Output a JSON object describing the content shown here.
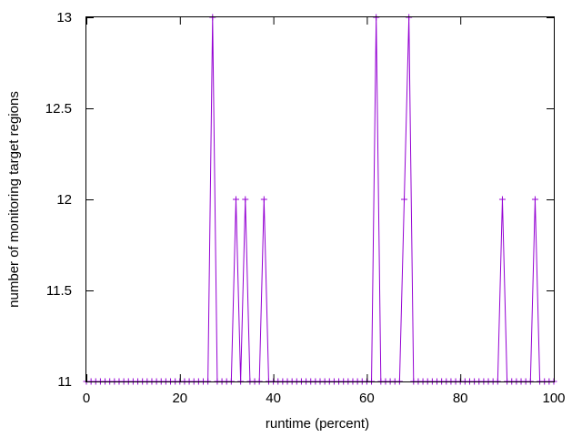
{
  "chart_data": {
    "type": "line",
    "xlabel": "runtime (percent)",
    "ylabel": "number of monitoring target regions",
    "xlim": [
      0,
      100
    ],
    "ylim": [
      11,
      13
    ],
    "xticks": [
      0,
      20,
      40,
      60,
      80,
      100
    ],
    "yticks": [
      11,
      11.5,
      12,
      12.5,
      13
    ],
    "xtick_labels": [
      "0",
      "20",
      "40",
      "60",
      "80",
      "100"
    ],
    "ytick_labels": [
      "11",
      "11.5",
      "12",
      "12.5",
      "13"
    ],
    "grid": false,
    "legend": "none",
    "color": "#9400d3",
    "marker": "+",
    "series": [
      {
        "x": [
          0,
          1,
          2,
          3,
          4,
          5,
          6,
          7,
          8,
          9,
          10,
          11,
          12,
          13,
          14,
          15,
          16,
          17,
          18,
          19,
          20,
          21,
          22,
          23,
          24,
          25,
          26,
          27,
          28,
          29,
          30,
          31,
          32,
          33,
          34,
          35,
          36,
          37,
          38,
          39,
          40,
          41,
          42,
          43,
          44,
          45,
          46,
          47,
          48,
          49,
          50,
          51,
          52,
          53,
          54,
          55,
          56,
          57,
          58,
          59,
          60,
          61,
          62,
          63,
          64,
          65,
          66,
          67,
          68,
          69,
          70,
          71,
          72,
          73,
          74,
          75,
          76,
          77,
          78,
          79,
          80,
          81,
          82,
          83,
          84,
          85,
          86,
          87,
          88,
          89,
          90,
          91,
          92,
          93,
          94,
          95,
          96,
          97,
          98,
          99,
          100
        ],
        "y": [
          11,
          11,
          11,
          11,
          11,
          11,
          11,
          11,
          11,
          11,
          11,
          11,
          11,
          11,
          11,
          11,
          11,
          11,
          11,
          11,
          11,
          11,
          11,
          11,
          11,
          11,
          11,
          13,
          11,
          11,
          11,
          11,
          12,
          11,
          12,
          11,
          11,
          11,
          12,
          11,
          11,
          11,
          11,
          11,
          11,
          11,
          11,
          11,
          11,
          11,
          11,
          11,
          11,
          11,
          11,
          11,
          11,
          11,
          11,
          11,
          11,
          11,
          13,
          11,
          11,
          11,
          11,
          11,
          12,
          13,
          11,
          11,
          11,
          11,
          11,
          11,
          11,
          11,
          11,
          11,
          11,
          11,
          11,
          11,
          11,
          11,
          11,
          11,
          11,
          12,
          11,
          11,
          11,
          11,
          11,
          11,
          12,
          11,
          11,
          11,
          11
        ]
      }
    ]
  }
}
